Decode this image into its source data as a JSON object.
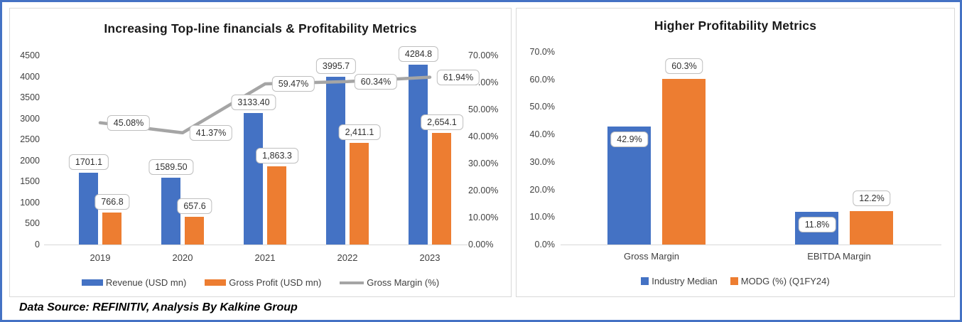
{
  "page": {
    "footer": "Data Source: REFINITIV, Analysis By Kalkine Group"
  },
  "colors": {
    "frame_border": "#4472C4",
    "panel_border": "#D9D9D9",
    "blue_series": "#4472C4",
    "orange_series": "#ED7D31",
    "gray_line": "#A5A5A5",
    "label_box_border": "#BFBFBF"
  },
  "chart_data": [
    {
      "type": "bar",
      "subtype": "combo-bar-line-dual-axis",
      "title": "Increasing Top-line financials & Profitability Metrics",
      "categories": [
        "2019",
        "2020",
        "2021",
        "2022",
        "2023"
      ],
      "series": [
        {
          "name": "Revenue (USD mn)",
          "kind": "bar",
          "color": "#4472C4",
          "axis": "left",
          "values": [
            1701.1,
            1589.5,
            3133.4,
            3995.7,
            4284.8
          ],
          "labels": [
            "1701.1",
            "1589.50",
            "3133.40",
            "3995.7",
            "4284.8"
          ]
        },
        {
          "name": "Gross Profit (USD mn)",
          "kind": "bar",
          "color": "#ED7D31",
          "axis": "left",
          "values": [
            766.8,
            657.6,
            1863.3,
            2411.1,
            2654.1
          ],
          "labels": [
            "766.8",
            "657.6",
            "1,863.3",
            "2,411.1",
            "2,654.1"
          ]
        },
        {
          "name": "Gross Margin (%)",
          "kind": "line",
          "color": "#A5A5A5",
          "axis": "right",
          "values": [
            45.08,
            41.37,
            59.47,
            60.34,
            61.94
          ],
          "labels": [
            "45.08%",
            "41.37%",
            "59.47%",
            "60.34%",
            "61.94%"
          ]
        }
      ],
      "left_axis": {
        "min": 0,
        "max": 4500,
        "ticks": [
          "4500",
          "4000",
          "3500",
          "3000",
          "2500",
          "2000",
          "1500",
          "1000",
          "500",
          "0"
        ]
      },
      "right_axis": {
        "min": 0,
        "max": 70,
        "ticks": [
          "70.00%",
          "60.00%",
          "50.00%",
          "40.00%",
          "30.00%",
          "20.00%",
          "10.00%",
          "0.00%"
        ]
      },
      "grid": false,
      "legend_position": "bottom"
    },
    {
      "type": "bar",
      "title": "Higher Profitability Metrics",
      "categories": [
        "Gross Margin",
        "EBITDA Margin"
      ],
      "series": [
        {
          "name": "Industry Median",
          "color": "#4472C4",
          "values": [
            42.9,
            11.8
          ],
          "labels": [
            "42.9%",
            "11.8%"
          ],
          "label_placement": "inside-top"
        },
        {
          "name": "MODG (%) (Q1FY24)",
          "color": "#ED7D31",
          "values": [
            60.3,
            12.2
          ],
          "labels": [
            "60.3%",
            "12.2%"
          ],
          "label_placement": "above"
        }
      ],
      "y_axis": {
        "min": 0,
        "max": 70,
        "ticks": [
          "70.0%",
          "60.0%",
          "50.0%",
          "40.0%",
          "30.0%",
          "20.0%",
          "10.0%",
          "0.0%"
        ]
      },
      "grid": false,
      "legend_position": "bottom"
    }
  ]
}
